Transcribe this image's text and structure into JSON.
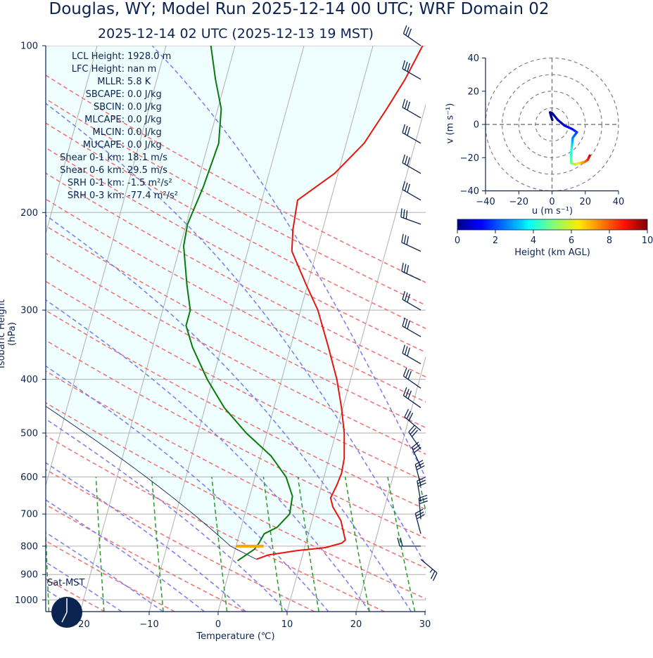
{
  "title": "Douglas, WY; Model Run 2025-12-14 00 UTC; WRF Domain 02",
  "subtitle": "2025-12-14 02 UTC  (2025-12-13 19 MST)",
  "stats": [
    {
      "label": "LCL Height:",
      "value": "1928.0 m"
    },
    {
      "label": "LFC Height:",
      "value": "nan m"
    },
    {
      "label": "MLLR:",
      "value": "5.8 K"
    },
    {
      "label": "SBCAPE:",
      "value": "0.0 J/kg"
    },
    {
      "label": "SBCIN:",
      "value": "0.0 J/kg"
    },
    {
      "label": "MLCAPE:",
      "value": "0.0 J/kg"
    },
    {
      "label": "MLCIN:",
      "value": "0.0 J/kg"
    },
    {
      "label": "MUCAPE:",
      "value": "0.0 J/kg"
    },
    {
      "label": "Shear 0-1 km:",
      "value": "18.1 m/s"
    },
    {
      "label": "Shear 0-6 km:",
      "value": "29.5 m/s"
    },
    {
      "label": "SRH 0-1 km:",
      "value": "-1.5 m²/s²"
    },
    {
      "label": "SRH 0-3 km:",
      "value": "-77.4 m²/s²"
    }
  ],
  "sat_mst": "Sat-MST",
  "colors": {
    "temperature": "#e8150c",
    "dewpoint": "#0a7a0a",
    "dry_adiabat": "#f07070",
    "moist_adiabat": "#7a7af0",
    "mixing_ratio": "#2a9a2a",
    "isotherm": "#b0b0b0",
    "cape_fill": "#effeff",
    "lcl_marker": "#f5a800",
    "navy": "#0b2350"
  },
  "chart_data": [
    {
      "type": "skewt",
      "xlabel": "Temperature (℃)",
      "ylabel": "Isobaric Height (hPa)",
      "xlim": [
        -25,
        30
      ],
      "ylim": [
        1050,
        100
      ],
      "x_ticks": [
        "−20",
        "−10",
        "0",
        "10",
        "20",
        "30"
      ],
      "x_tick_values": [
        -20,
        -10,
        0,
        10,
        20,
        30
      ],
      "y_ticks": [
        "100",
        "200",
        "300",
        "400",
        "500",
        "600",
        "700",
        "800",
        "900",
        "1000"
      ],
      "y_tick_values": [
        100,
        200,
        300,
        400,
        500,
        600,
        700,
        800,
        900,
        1000
      ],
      "grid": true,
      "lcl_pressure_hpa": 800,
      "lcl_temp_range_c": [
        0,
        4
      ],
      "temperature_profile": [
        {
          "p": 845,
          "t": 3.5
        },
        {
          "p": 830,
          "t": 5
        },
        {
          "p": 815,
          "t": 9
        },
        {
          "p": 805,
          "t": 13
        },
        {
          "p": 790,
          "t": 15.2
        },
        {
          "p": 780,
          "t": 15.6
        },
        {
          "p": 720,
          "t": 14.2
        },
        {
          "p": 680,
          "t": 12.5
        },
        {
          "p": 655,
          "t": 11.8
        },
        {
          "p": 620,
          "t": 12.2
        },
        {
          "p": 590,
          "t": 12.4
        },
        {
          "p": 555,
          "t": 12.2
        },
        {
          "p": 500,
          "t": 11.2
        },
        {
          "p": 450,
          "t": 9.8
        },
        {
          "p": 400,
          "t": 8
        },
        {
          "p": 350,
          "t": 5.5
        },
        {
          "p": 300,
          "t": 2.5
        },
        {
          "p": 270,
          "t": -0.2
        },
        {
          "p": 235,
          "t": -3.6
        },
        {
          "p": 215,
          "t": -4.3
        },
        {
          "p": 190,
          "t": -4.8
        },
        {
          "p": 170,
          "t": -0.5
        },
        {
          "p": 150,
          "t": 2.6
        },
        {
          "p": 130,
          "t": 4.5
        },
        {
          "p": 115,
          "t": 6
        },
        {
          "p": 100,
          "t": 7.2
        }
      ],
      "dewpoint_profile": [
        {
          "p": 850,
          "t": 0.8
        },
        {
          "p": 830,
          "t": 1.8
        },
        {
          "p": 810,
          "t": 2.8
        },
        {
          "p": 790,
          "t": 3.2
        },
        {
          "p": 760,
          "t": 3.6
        },
        {
          "p": 740,
          "t": 5.2
        },
        {
          "p": 700,
          "t": 6.5
        },
        {
          "p": 650,
          "t": 6.2
        },
        {
          "p": 600,
          "t": 4.5
        },
        {
          "p": 550,
          "t": 1.5
        },
        {
          "p": 500,
          "t": -3
        },
        {
          "p": 450,
          "t": -7.2
        },
        {
          "p": 400,
          "t": -10.8
        },
        {
          "p": 350,
          "t": -14.2
        },
        {
          "p": 320,
          "t": -16
        },
        {
          "p": 300,
          "t": -16
        },
        {
          "p": 270,
          "t": -17.5
        },
        {
          "p": 230,
          "t": -19.5
        },
        {
          "p": 210,
          "t": -19.8
        },
        {
          "p": 180,
          "t": -19
        },
        {
          "p": 150,
          "t": -18.5
        },
        {
          "p": 130,
          "t": -19.5
        },
        {
          "p": 115,
          "t": -21.5
        },
        {
          "p": 100,
          "t": -23.5
        }
      ]
    },
    {
      "type": "hodograph",
      "xlabel": "u (m s⁻¹)",
      "ylabel": "v (m s⁻¹)",
      "xlim": [
        -40,
        40
      ],
      "ylim": [
        -40,
        40
      ],
      "x_ticks": [
        "−40",
        "−20",
        "0",
        "20",
        "40"
      ],
      "x_tick_values": [
        -40,
        -20,
        0,
        20,
        40
      ],
      "y_ticks": [
        "40",
        "20",
        "0",
        "−20",
        "−40"
      ],
      "y_tick_values": [
        40,
        20,
        0,
        -20,
        -40
      ],
      "rings_ms": [
        10,
        20,
        30,
        40
      ],
      "trace": [
        {
          "u": 22.7,
          "v": -18.7,
          "h": 9.5
        },
        {
          "u": 21.5,
          "v": -21.3,
          "h": 8.7
        },
        {
          "u": 19.5,
          "v": -22.7,
          "h": 7.8
        },
        {
          "u": 16.5,
          "v": -23.3,
          "h": 6.8
        },
        {
          "u": 13.5,
          "v": -24,
          "h": 5.8
        },
        {
          "u": 11.5,
          "v": -23.3,
          "h": 5.0
        },
        {
          "u": 11.5,
          "v": -17.3,
          "h": 4.2
        },
        {
          "u": 12.2,
          "v": -10.7,
          "h": 3.3
        },
        {
          "u": 12.5,
          "v": -8,
          "h": 2.6
        },
        {
          "u": 15,
          "v": -4.7,
          "h": 1.9
        },
        {
          "u": 12,
          "v": -2.7,
          "h": 1.3
        },
        {
          "u": 7.5,
          "v": -0.7,
          "h": 0.9
        },
        {
          "u": 3.5,
          "v": 2.7,
          "h": 0.5
        },
        {
          "u": 0.2,
          "v": 6.7,
          "h": 0.3
        },
        {
          "u": -1.2,
          "v": 7.3,
          "h": 0.2
        },
        {
          "u": -0.5,
          "v": 4.7,
          "h": 0.1
        },
        {
          "u": 0.2,
          "v": 2.7,
          "h": 0.0
        }
      ]
    },
    {
      "type": "colorbar",
      "label": "Height (km AGL)",
      "range": [
        0,
        10
      ],
      "ticks": [
        "0",
        "2",
        "4",
        "6",
        "8",
        "10"
      ],
      "tick_values": [
        0,
        2,
        4,
        6,
        8,
        10
      ],
      "colormap": "jet"
    }
  ],
  "wind_barbs": [
    {
      "p": 100,
      "dir": 305,
      "spd_kt": 30
    },
    {
      "p": 115,
      "dir": 300,
      "spd_kt": 30
    },
    {
      "p": 135,
      "dir": 300,
      "spd_kt": 30
    },
    {
      "p": 150,
      "dir": 300,
      "spd_kt": 30
    },
    {
      "p": 170,
      "dir": 300,
      "spd_kt": 30
    },
    {
      "p": 190,
      "dir": 300,
      "spd_kt": 30
    },
    {
      "p": 210,
      "dir": 290,
      "spd_kt": 30
    },
    {
      "p": 235,
      "dir": 295,
      "spd_kt": 30
    },
    {
      "p": 265,
      "dir": 295,
      "spd_kt": 30
    },
    {
      "p": 300,
      "dir": 300,
      "spd_kt": 30
    },
    {
      "p": 335,
      "dir": 300,
      "spd_kt": 30
    },
    {
      "p": 375,
      "dir": 300,
      "spd_kt": 30
    },
    {
      "p": 415,
      "dir": 305,
      "spd_kt": 30
    },
    {
      "p": 450,
      "dir": 305,
      "spd_kt": 30
    },
    {
      "p": 495,
      "dir": 310,
      "spd_kt": 30
    },
    {
      "p": 535,
      "dir": 325,
      "spd_kt": 30
    },
    {
      "p": 575,
      "dir": 335,
      "spd_kt": 30
    },
    {
      "p": 620,
      "dir": 345,
      "spd_kt": 30
    },
    {
      "p": 665,
      "dir": 350,
      "spd_kt": 30
    },
    {
      "p": 715,
      "dir": 355,
      "spd_kt": 30
    },
    {
      "p": 760,
      "dir": 345,
      "spd_kt": 30
    },
    {
      "p": 800,
      "dir": 270,
      "spd_kt": 20
    },
    {
      "p": 845,
      "dir": 130,
      "spd_kt": 25
    }
  ]
}
